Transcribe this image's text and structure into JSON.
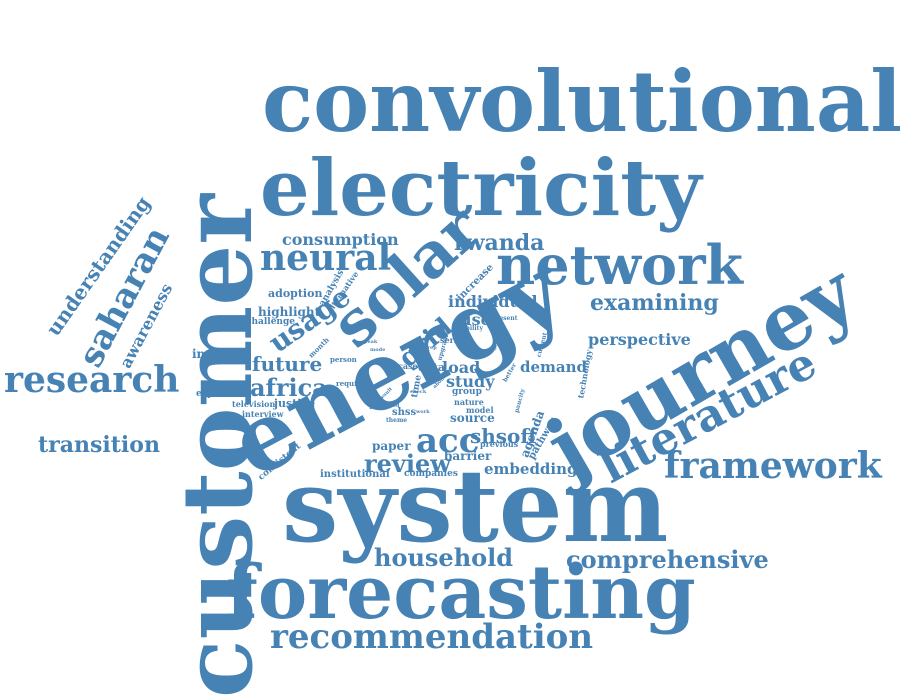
{
  "word_color": "#4682b4",
  "background": "#ffffff",
  "words": [
    {
      "key": "customer",
      "text": "customer"
    },
    {
      "key": "convolutional",
      "text": "convolutional"
    },
    {
      "key": "electricity",
      "text": "electricity"
    },
    {
      "key": "system",
      "text": "system"
    },
    {
      "key": "energy",
      "text": "energy"
    },
    {
      "key": "journey",
      "text": "journey"
    },
    {
      "key": "forecasting",
      "text": "forecasting"
    },
    {
      "key": "solar",
      "text": "solar"
    },
    {
      "key": "network",
      "text": "network"
    },
    {
      "key": "literature",
      "text": "literature"
    },
    {
      "key": "framework",
      "text": "framework"
    },
    {
      "key": "recommendation",
      "text": "recommendation"
    },
    {
      "key": "research",
      "text": "research"
    },
    {
      "key": "neural",
      "text": "neural"
    },
    {
      "key": "comprehensive",
      "text": "comprehensive"
    },
    {
      "key": "household",
      "text": "household"
    },
    {
      "key": "transition",
      "text": "transition"
    },
    {
      "key": "saharan",
      "text": "saharan"
    },
    {
      "key": "understanding",
      "text": "understanding"
    },
    {
      "key": "examining",
      "text": "examining"
    },
    {
      "key": "usage",
      "text": "usage"
    },
    {
      "key": "rwanda",
      "text": "rwanda"
    },
    {
      "key": "acc",
      "text": "acc"
    },
    {
      "key": "review",
      "text": "review"
    },
    {
      "key": "africa",
      "text": "africa"
    },
    {
      "key": "future",
      "text": "future"
    },
    {
      "key": "grid",
      "text": "grid"
    },
    {
      "key": "shsoff",
      "text": "shsoff"
    },
    {
      "key": "perspective",
      "text": "perspective"
    },
    {
      "key": "consumption",
      "text": "consumption"
    },
    {
      "key": "individual",
      "text": "individual"
    },
    {
      "key": "embedding",
      "text": "embedding"
    },
    {
      "key": "awareness",
      "text": "awareness"
    },
    {
      "key": "improve",
      "text": "improve"
    },
    {
      "key": "demand",
      "text": "demand"
    },
    {
      "key": "load",
      "text": "load"
    },
    {
      "key": "study",
      "text": "study"
    },
    {
      "key": "user",
      "text": "user"
    },
    {
      "key": "data",
      "text": "data"
    },
    {
      "key": "highlight",
      "text": "highlight"
    },
    {
      "key": "adoption",
      "text": "adoption"
    },
    {
      "key": "challenge",
      "text": "challenge"
    },
    {
      "key": "increase",
      "text": "increase"
    },
    {
      "key": "paper",
      "text": "paper"
    },
    {
      "key": "barrier",
      "text": "barrier"
    },
    {
      "key": "agenda",
      "text": "agenda"
    },
    {
      "key": "pathway",
      "text": "pathway"
    },
    {
      "key": "institutional",
      "text": "institutional"
    },
    {
      "key": "companies",
      "text": "companies"
    },
    {
      "key": "consistent",
      "text": "consistent"
    },
    {
      "key": "experience",
      "text": "experience"
    },
    {
      "key": "television",
      "text": "television"
    },
    {
      "key": "interview",
      "text": "interview"
    },
    {
      "key": "justice",
      "text": "justice"
    },
    {
      "key": "shss",
      "text": "shss"
    },
    {
      "key": "source",
      "text": "source"
    },
    {
      "key": "previous",
      "text": "previous"
    },
    {
      "key": "model",
      "text": "model"
    },
    {
      "key": "group",
      "text": "group"
    },
    {
      "key": "nature",
      "text": "nature"
    },
    {
      "key": "series",
      "text": "series"
    },
    {
      "key": "analysis",
      "text": "analysis"
    },
    {
      "key": "alternative",
      "text": "alternative"
    },
    {
      "key": "technology",
      "text": "technology"
    },
    {
      "key": "case",
      "text": "case"
    },
    {
      "key": "time",
      "text": "time"
    },
    {
      "key": "month",
      "text": "month"
    },
    {
      "key": "person",
      "text": "person"
    },
    {
      "key": "require",
      "text": "require"
    },
    {
      "key": "viability",
      "text": "viability"
    },
    {
      "key": "present",
      "text": "present"
    },
    {
      "key": "service",
      "text": "service"
    },
    {
      "key": "current",
      "text": "current"
    },
    {
      "key": "upgrade",
      "text": "upgrade"
    },
    {
      "key": "paucity",
      "text": "paucity"
    },
    {
      "key": "better",
      "text": "better"
    },
    {
      "key": "theme",
      "text": "theme"
    },
    {
      "key": "peak",
      "text": "peak"
    },
    {
      "key": "mode",
      "text": "mode"
    },
    {
      "key": "result",
      "text": "result"
    },
    {
      "key": "cent",
      "text": "centre"
    },
    {
      "key": "prep",
      "text": "prep"
    },
    {
      "key": "check",
      "text": "check"
    },
    {
      "key": "about",
      "text": "about"
    },
    {
      "key": "need",
      "text": "need"
    },
    {
      "key": "work",
      "text": "work"
    }
  ]
}
